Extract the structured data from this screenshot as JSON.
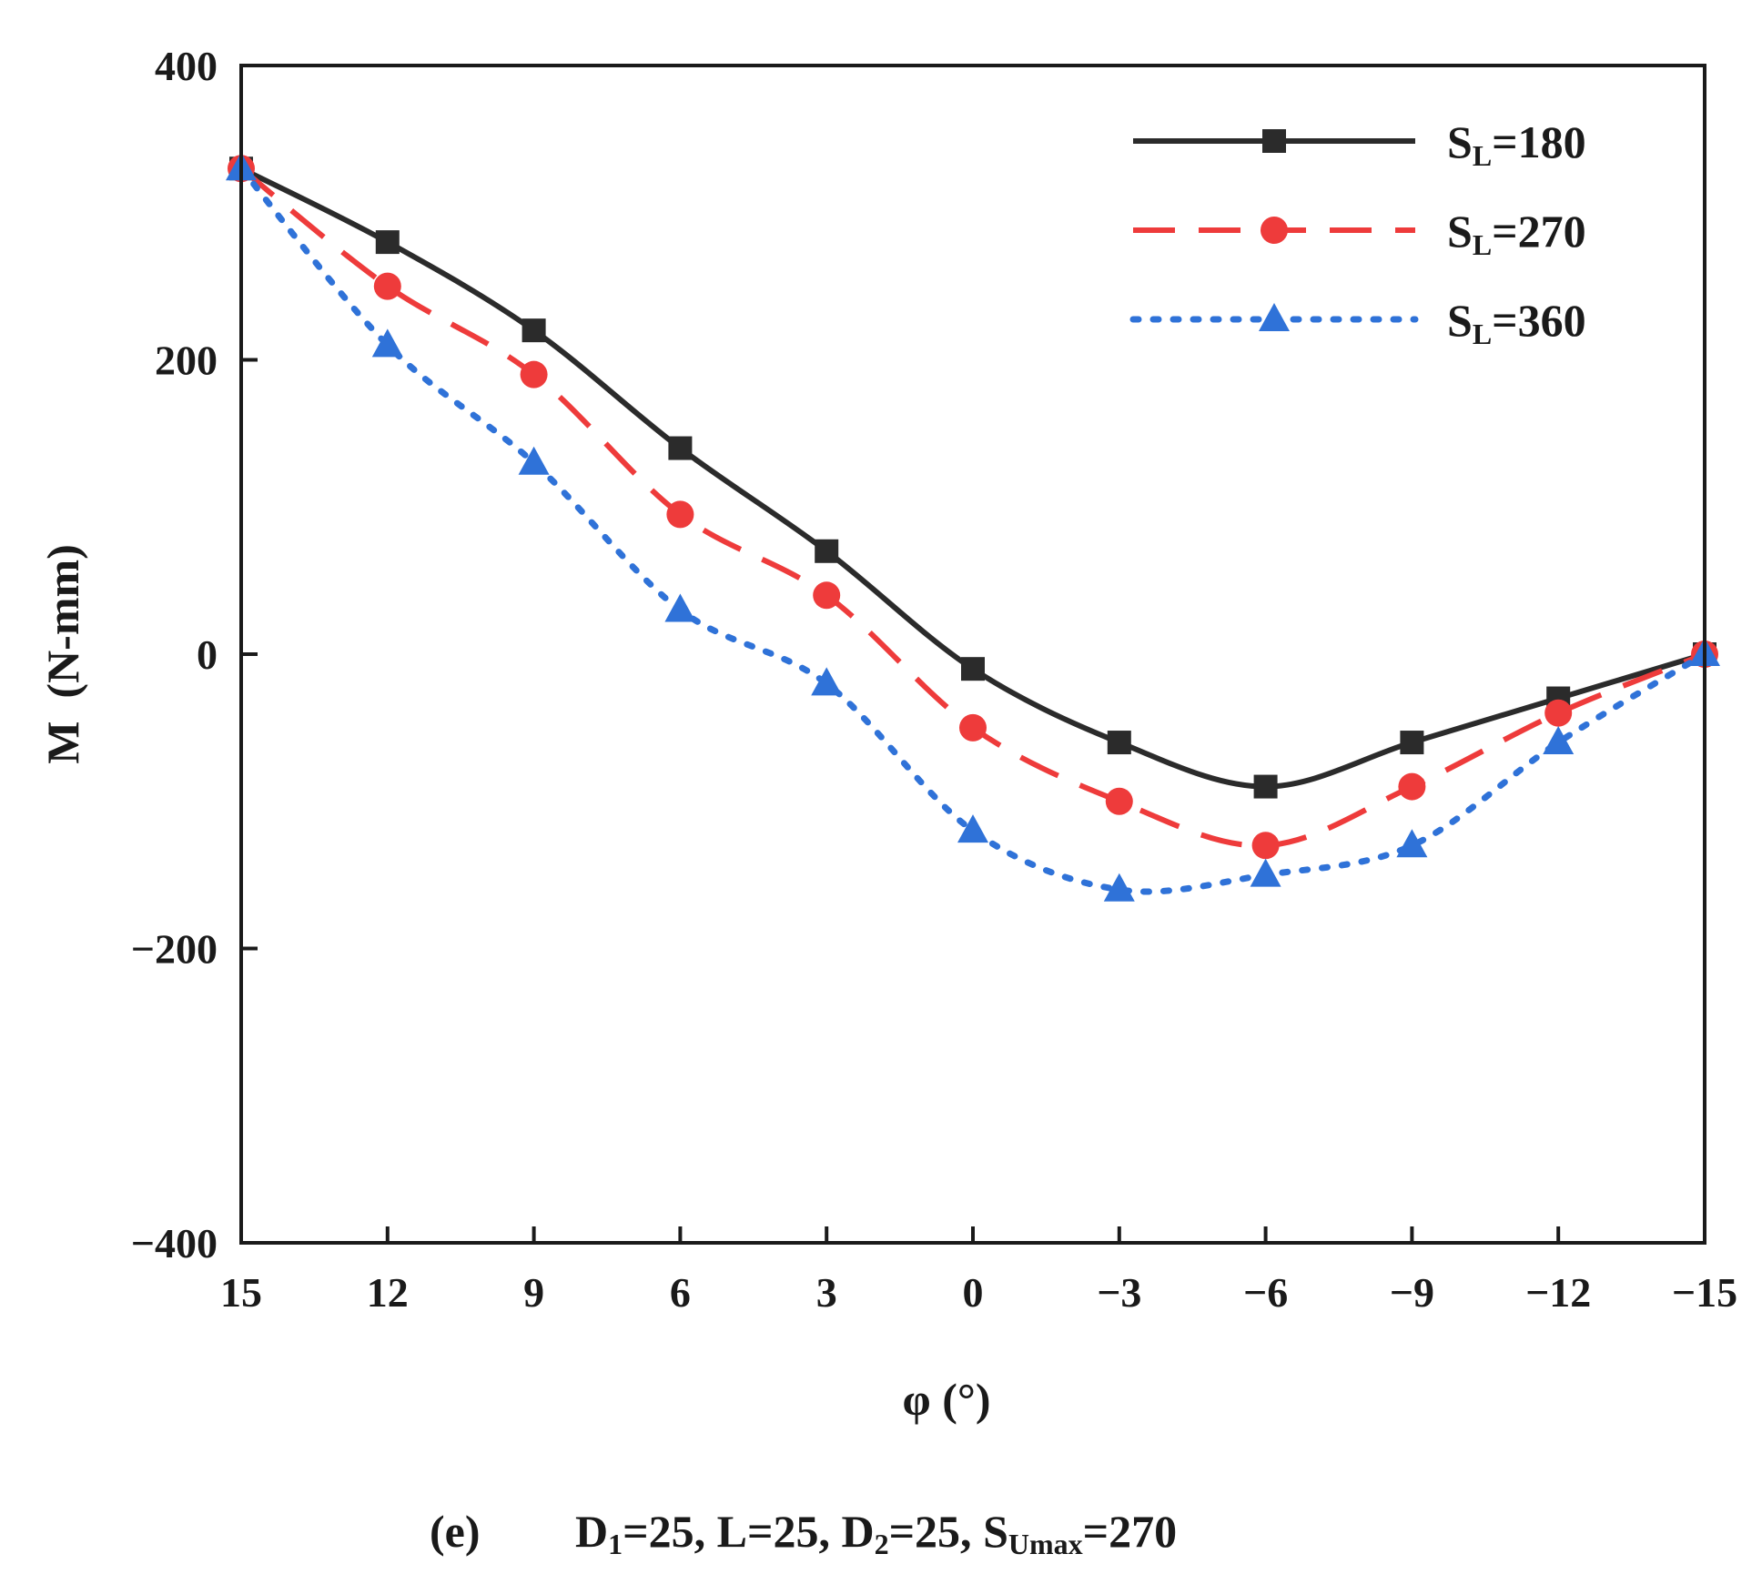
{
  "chart_data": {
    "type": "line",
    "title": "",
    "xlabel": "φ (°)",
    "ylabel": "M  (N-mm)",
    "x": [
      15,
      12,
      9,
      6,
      3,
      0,
      -3,
      -6,
      -9,
      -12,
      -15
    ],
    "xlim": [
      15,
      -15
    ],
    "ylim": [
      -400,
      400
    ],
    "x_ticks": [
      {
        "v": 15,
        "label": "15"
      },
      {
        "v": 12,
        "label": "12"
      },
      {
        "v": 9,
        "label": "9"
      },
      {
        "v": 6,
        "label": "6"
      },
      {
        "v": 3,
        "label": "3"
      },
      {
        "v": 0,
        "label": "0"
      },
      {
        "v": -3,
        "label": "−3"
      },
      {
        "v": -6,
        "label": "−6"
      },
      {
        "v": -9,
        "label": "−9"
      },
      {
        "v": -12,
        "label": "−12"
      },
      {
        "v": -15,
        "label": "−15"
      }
    ],
    "y_ticks": [
      {
        "v": 400,
        "label": "400"
      },
      {
        "v": 200,
        "label": "200"
      },
      {
        "v": 0,
        "label": "0"
      },
      {
        "v": -200,
        "label": "−200"
      },
      {
        "v": -400,
        "label": "−400"
      }
    ],
    "grid": false,
    "legend_position": "top-right",
    "series": [
      {
        "name_main": "S",
        "name_sub": "L",
        "name_rest": "=180",
        "color": "#2b2b2b",
        "line_style": "solid",
        "marker": "square",
        "values": [
          330,
          280,
          220,
          140,
          70,
          -10,
          -60,
          -90,
          -60,
          -30,
          0
        ]
      },
      {
        "name_main": "S",
        "name_sub": "L",
        "name_rest": "=270",
        "color": "#ee3b3b",
        "line_style": "dashed",
        "marker": "circle",
        "values": [
          330,
          250,
          190,
          95,
          40,
          -50,
          -100,
          -130,
          -90,
          -40,
          0
        ]
      },
      {
        "name_main": "S",
        "name_sub": "L",
        "name_rest": "=360",
        "color": "#2f72d8",
        "line_style": "dotted",
        "marker": "triangle",
        "values": [
          330,
          210,
          130,
          30,
          -20,
          -120,
          -160,
          -150,
          -130,
          -60,
          0
        ]
      }
    ]
  },
  "caption": {
    "label": "(e)",
    "d1_main": "D",
    "d1_sub": "1",
    "d1_rest": "=25, L=25, ",
    "d2_main": "D",
    "d2_sub": "2",
    "d2_rest": "=25, ",
    "s_main": "S",
    "s_sub": "Umax",
    "s_rest": "=270"
  }
}
